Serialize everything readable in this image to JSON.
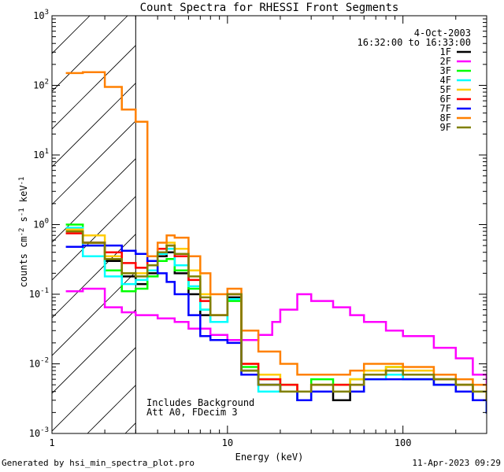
{
  "chart_data": {
    "type": "line",
    "title": "Count Spectra for RHESSI Front Segments",
    "xlabel": "Energy (keV)",
    "ylabel": "counts cm-2 s-1 keV-1",
    "xscale": "log",
    "yscale": "log",
    "xlim": [
      1,
      300
    ],
    "ylim": [
      0.001,
      1000
    ],
    "x_ticks": [
      {
        "value": 1,
        "label": "1"
      },
      {
        "value": 10,
        "label": "10"
      },
      {
        "value": 100,
        "label": "100"
      }
    ],
    "y_ticks": [
      {
        "value": 0.001,
        "base": "10",
        "exp": "-3"
      },
      {
        "value": 0.01,
        "base": "10",
        "exp": "-2"
      },
      {
        "value": 0.1,
        "base": "10",
        "exp": "-1"
      },
      {
        "value": 1,
        "base": "10",
        "exp": "0"
      },
      {
        "value": 10,
        "base": "10",
        "exp": "1"
      },
      {
        "value": 100,
        "base": "10",
        "exp": "2"
      },
      {
        "value": 1000,
        "base": "10",
        "exp": "3"
      }
    ],
    "date": "4-Oct-2003",
    "time_range": "16:32:00 to 16:33:00",
    "hatched_region_max_energy_keV": 3,
    "annotations": [
      "Includes Background",
      "Att A0, FDecim 3"
    ],
    "series": [
      {
        "name": "1F",
        "color": "#000000",
        "x": [
          1.2,
          1.5,
          2,
          2.5,
          3,
          3.5,
          4,
          4.5,
          5,
          6,
          7,
          8,
          10,
          12,
          15,
          20,
          25,
          30,
          40,
          50,
          60,
          80,
          100,
          150,
          200,
          250,
          300
        ],
        "y": [
          0.85,
          0.55,
          0.3,
          0.18,
          0.14,
          0.2,
          0.35,
          0.4,
          0.2,
          0.1,
          0.05,
          0.04,
          0.09,
          0.008,
          0.005,
          0.004,
          0.003,
          0.004,
          0.003,
          0.004,
          0.007,
          0.007,
          0.006,
          0.005,
          0.004,
          0.003,
          0.002
        ]
      },
      {
        "name": "2F",
        "color": "#ff00ff",
        "x": [
          1.2,
          1.5,
          2,
          2.5,
          3,
          4,
          5,
          6,
          8,
          10,
          12,
          15,
          18,
          20,
          25,
          30,
          40,
          50,
          60,
          80,
          100,
          150,
          200,
          250,
          300
        ],
        "y": [
          0.11,
          0.12,
          0.065,
          0.055,
          0.05,
          0.045,
          0.04,
          0.032,
          0.026,
          0.022,
          0.022,
          0.026,
          0.04,
          0.06,
          0.1,
          0.08,
          0.065,
          0.05,
          0.04,
          0.03,
          0.025,
          0.017,
          0.012,
          0.007,
          0.005
        ]
      },
      {
        "name": "3F",
        "color": "#00ff00",
        "x": [
          1.2,
          1.5,
          2,
          2.5,
          3,
          3.5,
          4,
          4.5,
          5,
          6,
          7,
          8,
          10,
          12,
          15,
          20,
          25,
          30,
          40,
          50,
          60,
          80,
          100,
          150,
          200,
          250,
          300
        ],
        "y": [
          1.0,
          0.5,
          0.22,
          0.11,
          0.12,
          0.18,
          0.3,
          0.32,
          0.22,
          0.12,
          0.06,
          0.04,
          0.08,
          0.009,
          0.006,
          0.005,
          0.004,
          0.006,
          0.005,
          0.006,
          0.007,
          0.009,
          0.007,
          0.006,
          0.005,
          0.004,
          0.003
        ]
      },
      {
        "name": "4F",
        "color": "#00ffff",
        "x": [
          1.2,
          1.5,
          2,
          2.5,
          3,
          3.5,
          4,
          4.5,
          5,
          6,
          7,
          8,
          10,
          12,
          15,
          20,
          25,
          30,
          40,
          50,
          60,
          80,
          100,
          150,
          200,
          250,
          300
        ],
        "y": [
          0.9,
          0.35,
          0.18,
          0.14,
          0.16,
          0.22,
          0.38,
          0.45,
          0.26,
          0.13,
          0.06,
          0.04,
          0.085,
          0.007,
          0.004,
          0.004,
          0.003,
          0.004,
          0.004,
          0.004,
          0.006,
          0.007,
          0.006,
          0.005,
          0.004,
          0.003,
          0.002
        ]
      },
      {
        "name": "5F",
        "color": "#ffcc00",
        "x": [
          1.2,
          1.5,
          2,
          2.5,
          3,
          3.5,
          4,
          4.5,
          5,
          6,
          7,
          8,
          10,
          12,
          15,
          20,
          25,
          30,
          40,
          50,
          60,
          80,
          100,
          150,
          200,
          250,
          300
        ],
        "y": [
          0.85,
          0.7,
          0.35,
          0.2,
          0.2,
          0.3,
          0.45,
          0.55,
          0.45,
          0.22,
          0.1,
          0.05,
          0.1,
          0.01,
          0.007,
          0.005,
          0.004,
          0.005,
          0.005,
          0.006,
          0.008,
          0.009,
          0.008,
          0.006,
          0.005,
          0.004,
          0.003
        ]
      },
      {
        "name": "6F",
        "color": "#ff0000",
        "x": [
          1.2,
          1.5,
          2,
          2.5,
          3,
          3.5,
          4,
          4.5,
          5,
          6,
          7,
          8,
          10,
          12,
          15,
          20,
          25,
          30,
          40,
          50,
          60,
          80,
          100,
          150,
          200,
          250,
          300
        ],
        "y": [
          0.75,
          0.55,
          0.4,
          0.28,
          0.24,
          0.3,
          0.45,
          0.5,
          0.35,
          0.16,
          0.08,
          0.05,
          0.1,
          0.01,
          0.006,
          0.005,
          0.004,
          0.005,
          0.005,
          0.005,
          0.007,
          0.008,
          0.007,
          0.006,
          0.005,
          0.004,
          0.003
        ]
      },
      {
        "name": "7F",
        "color": "#0000ff",
        "x": [
          1.2,
          1.5,
          2,
          2.5,
          3,
          3.5,
          4,
          4.5,
          5,
          6,
          7,
          8,
          10,
          12,
          15,
          20,
          25,
          30,
          40,
          50,
          60,
          80,
          100,
          150,
          200,
          250,
          300
        ],
        "y": [
          0.48,
          0.5,
          0.5,
          0.42,
          0.38,
          0.3,
          0.2,
          0.15,
          0.1,
          0.05,
          0.025,
          0.022,
          0.02,
          0.007,
          0.005,
          0.004,
          0.003,
          0.004,
          0.004,
          0.004,
          0.006,
          0.006,
          0.006,
          0.005,
          0.004,
          0.003,
          0.002
        ]
      },
      {
        "name": "8F",
        "color": "#ff8000",
        "x": [
          1.2,
          1.5,
          2,
          2.5,
          3,
          3.5,
          4,
          4.5,
          5,
          6,
          7,
          8,
          10,
          12,
          15,
          20,
          25,
          30,
          40,
          50,
          60,
          80,
          100,
          150,
          200,
          250,
          300
        ],
        "y": [
          150,
          155,
          95,
          45,
          30,
          0.35,
          0.55,
          0.7,
          0.65,
          0.35,
          0.2,
          0.1,
          0.12,
          0.03,
          0.015,
          0.01,
          0.007,
          0.007,
          0.007,
          0.008,
          0.01,
          0.01,
          0.009,
          0.007,
          0.006,
          0.005,
          0.004
        ]
      },
      {
        "name": "9F",
        "color": "#808000",
        "x": [
          1.2,
          1.5,
          2,
          2.5,
          3,
          3.5,
          4,
          4.5,
          5,
          6,
          7,
          8,
          10,
          12,
          15,
          20,
          25,
          30,
          40,
          50,
          60,
          80,
          100,
          150,
          200,
          250,
          300
        ],
        "y": [
          0.8,
          0.55,
          0.32,
          0.2,
          0.18,
          0.26,
          0.4,
          0.5,
          0.38,
          0.18,
          0.09,
          0.05,
          0.1,
          0.008,
          0.005,
          0.004,
          0.004,
          0.005,
          0.004,
          0.005,
          0.007,
          0.008,
          0.007,
          0.006,
          0.005,
          0.004,
          0.003
        ]
      }
    ]
  },
  "footer": {
    "left": "Generated by hsi_min_spectra_plot.pro",
    "right": "11-Apr-2023 09:29"
  }
}
